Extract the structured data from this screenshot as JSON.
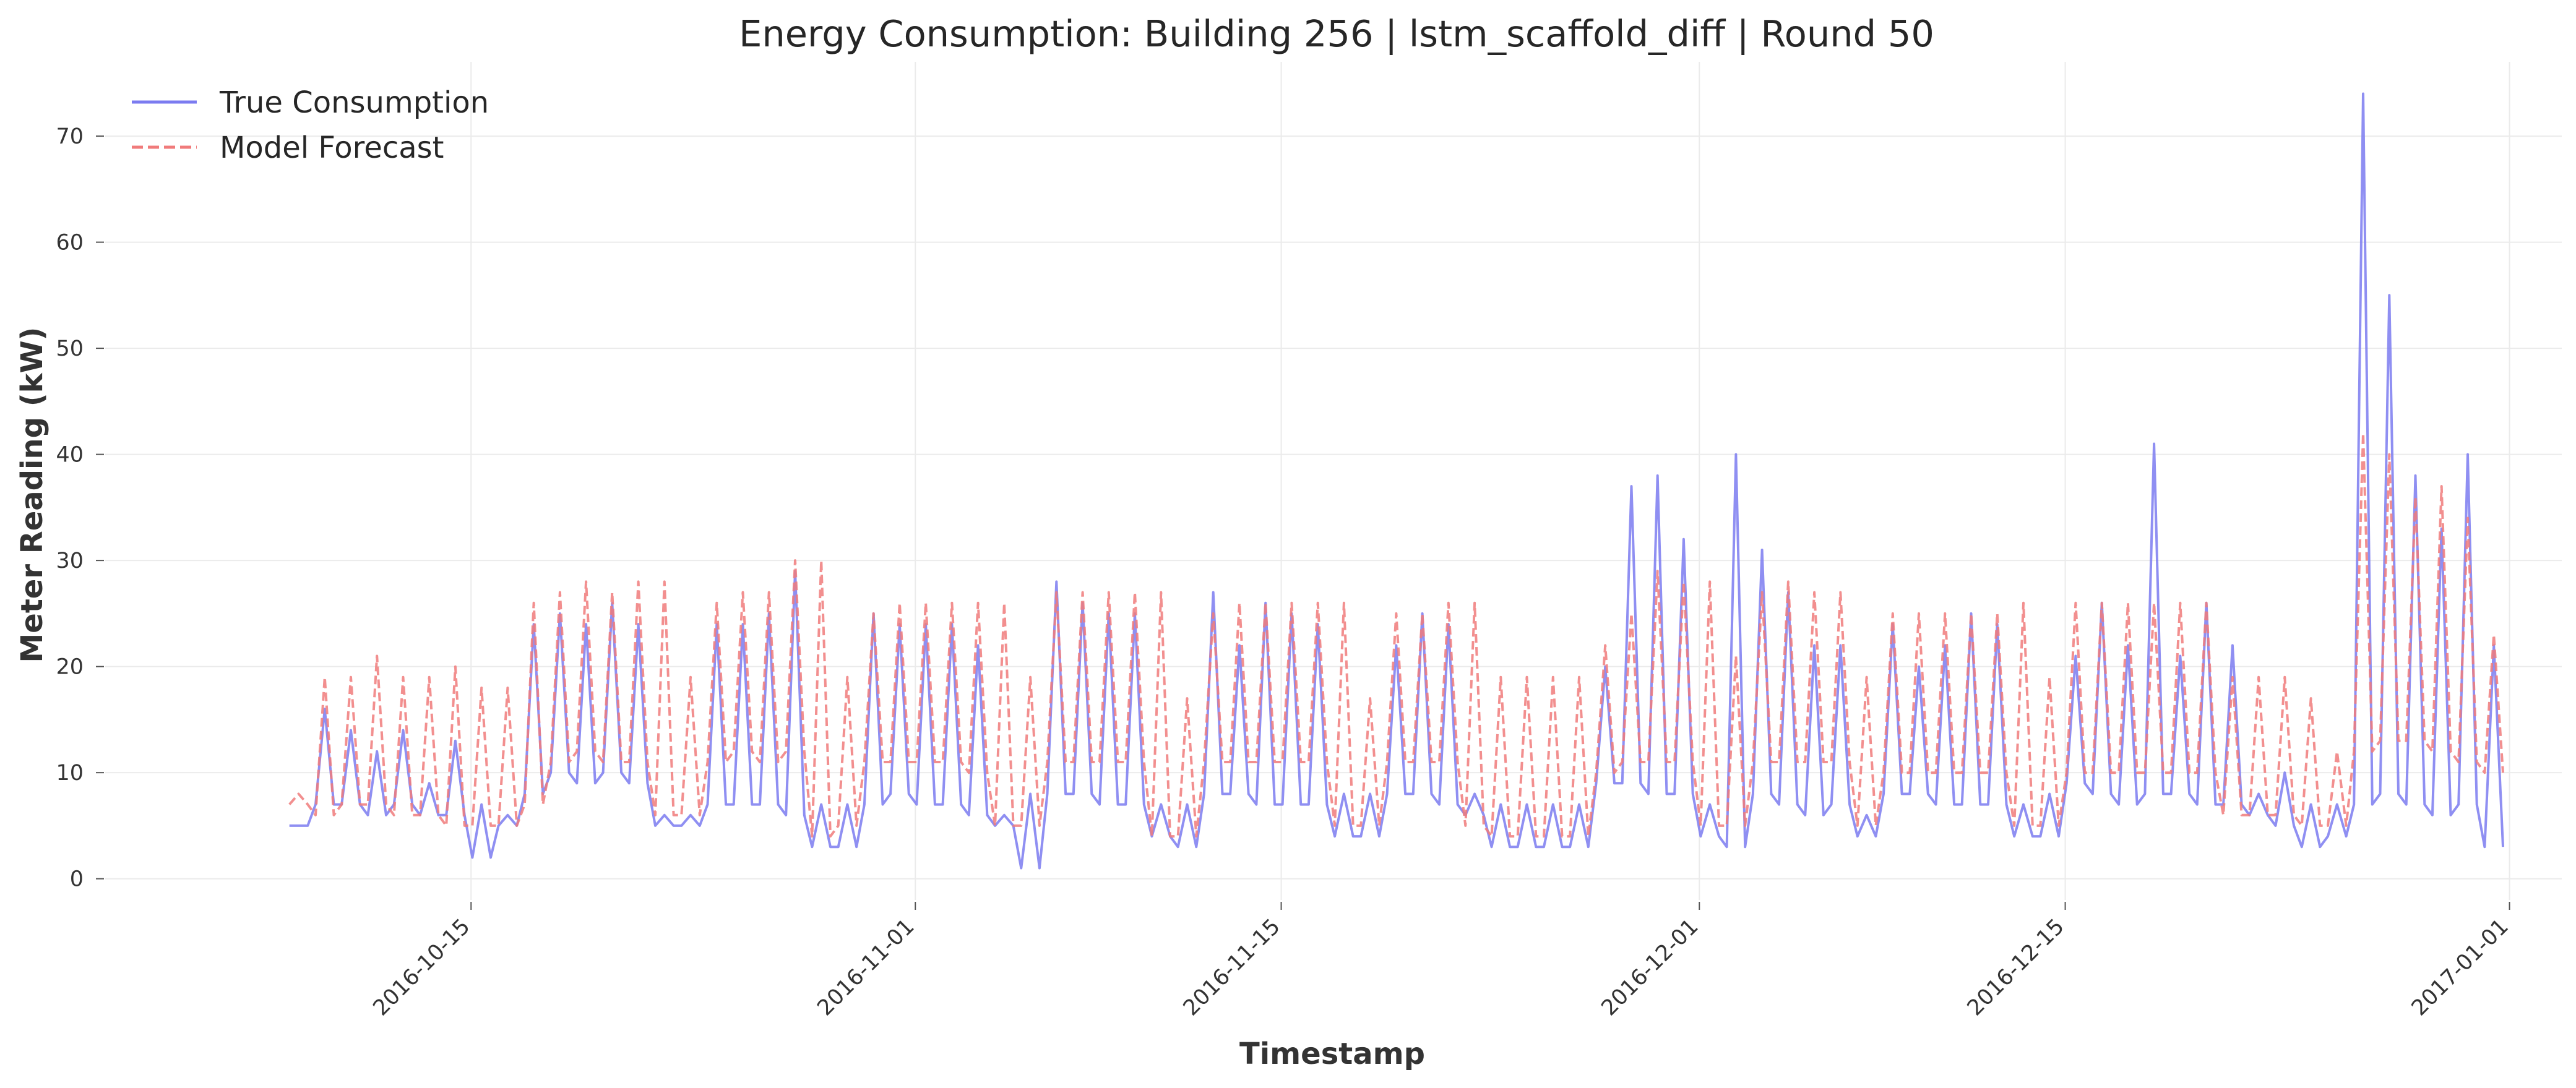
{
  "chart_data": {
    "type": "line",
    "title": "Energy Consumption: Building 256 | lstm_scaffold_diff | Round 50",
    "xlabel": "Timestamp",
    "ylabel": "Meter Reading (kW)",
    "xlim": [
      "2016-10-01",
      "2017-01-03"
    ],
    "ylim": [
      -2,
      77
    ],
    "x_ticks": [
      "2016-10-15",
      "2016-11-01",
      "2016-11-15",
      "2016-12-01",
      "2016-12-15",
      "2017-01-01"
    ],
    "y_ticks": [
      0,
      10,
      20,
      30,
      40,
      50,
      60,
      70
    ],
    "grid": true,
    "legend_position": "top-left",
    "series": [
      {
        "name": "True Consumption",
        "color": "#7b7bf0",
        "style": "solid",
        "x": [
          "2016-10-08",
          "2016-10-09",
          "2016-10-10",
          "2016-10-11",
          "2016-10-12",
          "2016-10-13",
          "2016-10-14",
          "2016-10-15",
          "2016-10-16",
          "2016-10-17",
          "2016-10-18",
          "2016-10-19",
          "2016-10-20",
          "2016-10-21",
          "2016-10-22",
          "2016-10-23",
          "2016-10-24",
          "2016-10-25",
          "2016-10-26",
          "2016-10-27",
          "2016-10-28",
          "2016-10-29",
          "2016-10-30",
          "2016-10-31",
          "2016-11-01",
          "2016-11-02",
          "2016-11-03",
          "2016-11-04",
          "2016-11-05",
          "2016-11-06",
          "2016-11-07",
          "2016-11-08",
          "2016-11-09",
          "2016-11-10",
          "2016-11-11",
          "2016-11-12",
          "2016-11-13",
          "2016-11-14",
          "2016-11-15",
          "2016-11-16",
          "2016-11-17",
          "2016-11-18",
          "2016-11-19",
          "2016-11-20",
          "2016-11-21",
          "2016-11-22",
          "2016-11-23",
          "2016-11-24",
          "2016-11-25",
          "2016-11-26",
          "2016-11-27",
          "2016-11-28",
          "2016-11-29",
          "2016-11-30",
          "2016-12-01",
          "2016-12-02",
          "2016-12-03",
          "2016-12-04",
          "2016-12-05",
          "2016-12-06",
          "2016-12-07",
          "2016-12-08",
          "2016-12-09",
          "2016-12-10",
          "2016-12-11",
          "2016-12-12",
          "2016-12-13",
          "2016-12-14",
          "2016-12-15",
          "2016-12-16",
          "2016-12-17",
          "2016-12-18",
          "2016-12-19",
          "2016-12-20",
          "2016-12-21",
          "2016-12-22",
          "2016-12-23",
          "2016-12-24",
          "2016-12-25",
          "2016-12-26",
          "2016-12-27",
          "2016-12-28",
          "2016-12-29",
          "2016-12-30",
          "2016-12-31"
        ],
        "values": [
          5,
          16,
          14,
          12,
          14,
          9,
          13,
          7,
          6,
          24,
          25,
          24,
          26,
          24,
          6,
          6,
          24,
          24,
          25,
          29,
          7,
          7,
          25,
          24,
          24,
          24,
          22,
          6,
          8,
          28,
          26,
          25,
          25,
          7,
          7,
          27,
          22,
          26,
          25,
          24,
          8,
          8,
          22,
          25,
          24,
          8,
          7,
          7,
          7,
          7,
          20,
          37,
          38,
          32,
          7,
          40,
          31,
          27,
          22,
          22,
          6,
          24,
          20,
          22,
          25,
          24,
          7,
          8,
          21,
          26,
          22,
          41,
          21,
          26,
          22,
          8,
          10,
          7,
          7,
          74,
          55,
          38,
          33,
          40,
          22
        ],
        "low": [
          5,
          7,
          7,
          6,
          7,
          6,
          6,
          2,
          5,
          8,
          10,
          9,
          10,
          9,
          5,
          5,
          7,
          7,
          7,
          6,
          3,
          3,
          7,
          8,
          7,
          7,
          6,
          5,
          1,
          8,
          8,
          7,
          7,
          4,
          3,
          8,
          8,
          7,
          7,
          7,
          4,
          4,
          8,
          8,
          7,
          6,
          3,
          3,
          3,
          3,
          9,
          9,
          8,
          8,
          4,
          3,
          8,
          7,
          6,
          7,
          4,
          8,
          8,
          7,
          7,
          7,
          4,
          4,
          9,
          8,
          7,
          8,
          8,
          7,
          7,
          6,
          5,
          3,
          4,
          7,
          8,
          7,
          6,
          7,
          3
        ]
      },
      {
        "name": "Model Forecast",
        "color": "#f07b7b",
        "style": "dashed",
        "x": [
          "2016-10-08",
          "2016-10-09",
          "2016-10-10",
          "2016-10-11",
          "2016-10-12",
          "2016-10-13",
          "2016-10-14",
          "2016-10-15",
          "2016-10-16",
          "2016-10-17",
          "2016-10-18",
          "2016-10-19",
          "2016-10-20",
          "2016-10-21",
          "2016-10-22",
          "2016-10-23",
          "2016-10-24",
          "2016-10-25",
          "2016-10-26",
          "2016-10-27",
          "2016-10-28",
          "2016-10-29",
          "2016-10-30",
          "2016-10-31",
          "2016-11-01",
          "2016-11-02",
          "2016-11-03",
          "2016-11-04",
          "2016-11-05",
          "2016-11-06",
          "2016-11-07",
          "2016-11-08",
          "2016-11-09",
          "2016-11-10",
          "2016-11-11",
          "2016-11-12",
          "2016-11-13",
          "2016-11-14",
          "2016-11-15",
          "2016-11-16",
          "2016-11-17",
          "2016-11-18",
          "2016-11-19",
          "2016-11-20",
          "2016-11-21",
          "2016-11-22",
          "2016-11-23",
          "2016-11-24",
          "2016-11-25",
          "2016-11-26",
          "2016-11-27",
          "2016-11-28",
          "2016-11-29",
          "2016-11-30",
          "2016-12-01",
          "2016-12-02",
          "2016-12-03",
          "2016-12-04",
          "2016-12-05",
          "2016-12-06",
          "2016-12-07",
          "2016-12-08",
          "2016-12-09",
          "2016-12-10",
          "2016-12-11",
          "2016-12-12",
          "2016-12-13",
          "2016-12-14",
          "2016-12-15",
          "2016-12-16",
          "2016-12-17",
          "2016-12-18",
          "2016-12-19",
          "2016-12-20",
          "2016-12-21",
          "2016-12-22",
          "2016-12-23",
          "2016-12-24",
          "2016-12-25",
          "2016-12-26",
          "2016-12-27",
          "2016-12-28",
          "2016-12-29",
          "2016-12-30",
          "2016-12-31"
        ],
        "values": [
          8,
          19,
          19,
          21,
          19,
          19,
          20,
          18,
          18,
          26,
          27,
          28,
          27,
          28,
          28,
          19,
          26,
          27,
          27,
          30,
          30,
          19,
          25,
          26,
          26,
          26,
          26,
          26,
          19,
          27,
          27,
          27,
          27,
          27,
          17,
          25,
          26,
          26,
          26,
          26,
          26,
          17,
          25,
          25,
          26,
          26,
          19,
          19,
          19,
          19,
          22,
          25,
          29,
          28,
          28,
          21,
          27,
          28,
          27,
          27,
          19,
          25,
          25,
          25,
          25,
          25,
          26,
          19,
          26,
          26,
          26,
          26,
          26,
          26,
          19,
          19,
          19,
          17,
          12,
          42,
          40,
          36,
          37,
          34,
          23
        ],
        "low": [
          7,
          6,
          7,
          7,
          6,
          6,
          5,
          5,
          5,
          7,
          11,
          12,
          11,
          11,
          6,
          6,
          11,
          12,
          11,
          12,
          4,
          5,
          11,
          11,
          11,
          11,
          10,
          5,
          5,
          11,
          11,
          11,
          11,
          4,
          4,
          11,
          11,
          11,
          11,
          11,
          5,
          5,
          11,
          11,
          11,
          5,
          4,
          4,
          4,
          4,
          10,
          11,
          11,
          11,
          5,
          5,
          11,
          11,
          11,
          11,
          5,
          10,
          10,
          10,
          10,
          10,
          5,
          5,
          10,
          10,
          10,
          10,
          10,
          10,
          6,
          6,
          6,
          5,
          5,
          12,
          13,
          13,
          12,
          11,
          10
        ]
      }
    ]
  }
}
